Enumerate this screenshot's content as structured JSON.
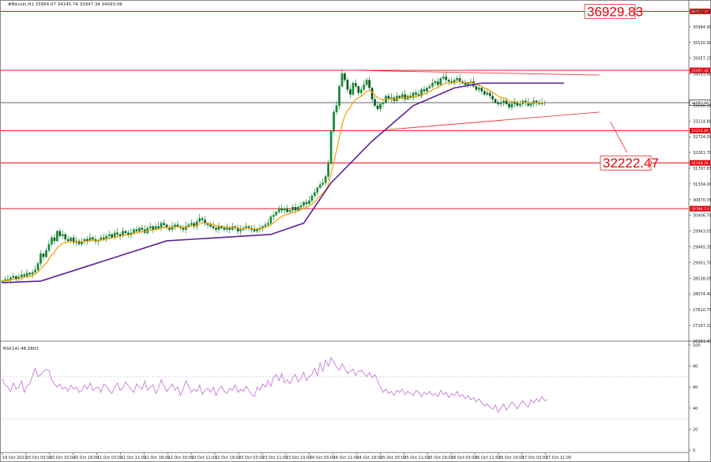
{
  "chart_data": {
    "type": "candlestick",
    "symbol_line": "#Bitcoin,H1  33954.07 34145.74 33947.34 34093.06",
    "price_axis_ticks": [
      "36462.25",
      "35984.90",
      "35520.90",
      "35057.25",
      "34593.60",
      "34093.06",
      "33666.30",
      "33224.80",
      "32724.00",
      "32261.70",
      "31797.65",
      "31334.00",
      "30870.35",
      "30406.70",
      "29943.05",
      "29465.35",
      "29001.70",
      "28538.05",
      "28074.40",
      "27610.75",
      "27147.10",
      "26683.45"
    ],
    "time_axis_ticks": [
      "19 Oct 2023",
      "20 Oct 03:00",
      "20 Oct 10:00",
      "20 Oct 18:00",
      "21 Oct 03:00",
      "21 Oct 11:00",
      "21 Oct 18:00",
      "22 Oct 03:00",
      "22 Oct 11:00",
      "22 Oct 19:00",
      "23 Oct 03:00",
      "23 Oct 11:00",
      "23 Oct 19:00",
      "24 Oct 03:00",
      "24 Oct 11:00",
      "24 Oct 19:00",
      "25 Oct 03:00",
      "25 Oct 11:00",
      "25 Oct 19:00",
      "26 Oct 03:00",
      "26 Oct 11:00",
      "26 Oct 19:00",
      "27 Oct 03:00",
      "27 Oct 11:00"
    ],
    "price_range": [
      26683.45,
      36900
    ],
    "horizontal_levels": [
      {
        "price": 36929.83,
        "tag": "36937.23",
        "color": "#e8000b"
      },
      {
        "price": 35097.0,
        "tag": "35097.44",
        "color": "#e8000b"
      },
      {
        "price": 33224.8,
        "tag": "33224.80",
        "color": "#e8000b"
      },
      {
        "price": 32222.47,
        "tag": "32188.26",
        "color": "#e8000b"
      },
      {
        "price": 30800.0,
        "tag": "30786.13",
        "color": "#e8000b"
      }
    ],
    "current_price": {
      "price": 34093.06,
      "tag": "34093.06",
      "color": "#000000"
    },
    "callouts": [
      {
        "text": "36929.83",
        "price": 36929.83
      },
      {
        "text": "32222.47",
        "price": 32222.47
      }
    ],
    "candles_close": [
      28550,
      28600,
      28580,
      28650,
      28700,
      28620,
      28680,
      28750,
      28700,
      28800,
      28760,
      28820,
      28900,
      29100,
      29400,
      29300,
      29500,
      29700,
      29900,
      29800,
      30100,
      29950,
      30000,
      29850,
      29800,
      29900,
      29750,
      29800,
      29700,
      29780,
      29850,
      29800,
      29900,
      29850,
      29780,
      29820,
      29900,
      29850,
      29950,
      30000,
      29900,
      30050,
      30000,
      29950,
      30100,
      30050,
      29980,
      30050,
      30150,
      30100,
      30200,
      30150,
      30050,
      30200,
      30250,
      30150,
      30250,
      30200,
      30350,
      30300,
      30200,
      30150,
      30250,
      30300,
      30250,
      30200,
      30150,
      30250,
      30300,
      30350,
      30250,
      30400,
      30500,
      30450,
      30350,
      30300,
      30250,
      30200,
      30150,
      30250,
      30200,
      30150,
      30200,
      30150,
      30250,
      30200,
      30100,
      30150,
      30200,
      30250,
      30200,
      30150,
      30100,
      30150,
      30200,
      30250,
      30300,
      30350,
      30550,
      30600,
      30700,
      30800,
      30750,
      30800,
      30700,
      30750,
      30850,
      30750,
      30850,
      30900,
      31000,
      30950,
      31050,
      31200,
      31300,
      31450,
      31550,
      31600,
      31800,
      32200,
      33200,
      33800,
      34000,
      34600,
      35000,
      34800,
      34500,
      34350,
      34700,
      34600,
      34400,
      34500,
      34650,
      34800,
      34550,
      34200,
      34000,
      33900,
      34050,
      34100,
      34300,
      34200,
      34250,
      34150,
      34300,
      34250,
      34350,
      34200,
      34300,
      34250,
      34400,
      34350,
      34300,
      34500,
      34450,
      34550,
      34600,
      34700,
      34750,
      34650,
      34850,
      34900,
      34800,
      34750,
      34700,
      34800,
      34850,
      34750,
      34700,
      34650,
      34700,
      34750,
      34600,
      34500,
      34550,
      34450,
      34350,
      34400,
      34300,
      34200,
      34100,
      34050,
      34100,
      34150,
      34050,
      33950,
      34050,
      34100,
      34000,
      34050,
      34150,
      34100,
      34000,
      34050,
      34150,
      34100,
      34050,
      34100,
      34093
    ],
    "ma_fast_color": "#f5a000",
    "ma_slow_color": "#5b1f9a",
    "ma_slow_anchors": [
      [
        0,
        28500
      ],
      [
        14,
        28550
      ],
      [
        60,
        29800
      ],
      [
        98,
        30000
      ],
      [
        110,
        30350
      ],
      [
        120,
        31600
      ],
      [
        135,
        32900
      ],
      [
        150,
        34000
      ],
      [
        165,
        34550
      ],
      [
        175,
        34700
      ],
      [
        205,
        34700
      ]
    ],
    "triangle": {
      "upper": [
        [
          126,
          35100
        ],
        [
          218,
          34950
        ]
      ],
      "lower": [
        [
          140,
          33250
        ],
        [
          218,
          33800
        ]
      ],
      "projection": [
        [
          222,
          33500
        ],
        [
          228,
          32550
        ]
      ]
    },
    "rsi": {
      "label": "RSI(14) 48.0803",
      "ticks": [
        "100",
        "80",
        "60",
        "40",
        "20",
        "0"
      ],
      "levels": [
        70,
        30
      ],
      "values": [
        68,
        62,
        60,
        56,
        64,
        58,
        60,
        66,
        55,
        61,
        63,
        71,
        78,
        70,
        72,
        75,
        77,
        76,
        67,
        63,
        60,
        63,
        58,
        60,
        56,
        62,
        58,
        60,
        55,
        57,
        62,
        58,
        64,
        57,
        59,
        60,
        55,
        63,
        61,
        57,
        54,
        60,
        64,
        57,
        59,
        65,
        61,
        58,
        55,
        63,
        60,
        58,
        66,
        57,
        60,
        62,
        54,
        59,
        67,
        61,
        56,
        59,
        63,
        57,
        60,
        52,
        58,
        66,
        61,
        55,
        58,
        56,
        62,
        53,
        57,
        59,
        55,
        60,
        52,
        58,
        61,
        56,
        54,
        59,
        57,
        62,
        55,
        58,
        56,
        61,
        57,
        53,
        51,
        60,
        57,
        63,
        60,
        66,
        61,
        69,
        72,
        66,
        73,
        64,
        67,
        63,
        69,
        72,
        65,
        68,
        74,
        66,
        70,
        72,
        78,
        71,
        83,
        75,
        86,
        80,
        88,
        84,
        79,
        76,
        82,
        78,
        73,
        75,
        77,
        71,
        75,
        76,
        73,
        70,
        74,
        69,
        72,
        66,
        60,
        55,
        58,
        54,
        56,
        52,
        57,
        55,
        58,
        53,
        56,
        54,
        52,
        57,
        55,
        51,
        55,
        53,
        56,
        52,
        54,
        51,
        57,
        53,
        55,
        50,
        54,
        52,
        56,
        51,
        53,
        49,
        52,
        48,
        50,
        46,
        49,
        45,
        42,
        44,
        41,
        39,
        43,
        36,
        40,
        44,
        38,
        42,
        46,
        43,
        39,
        44,
        47,
        43,
        41,
        48,
        45,
        49,
        46,
        51,
        47,
        48
      ]
    }
  }
}
